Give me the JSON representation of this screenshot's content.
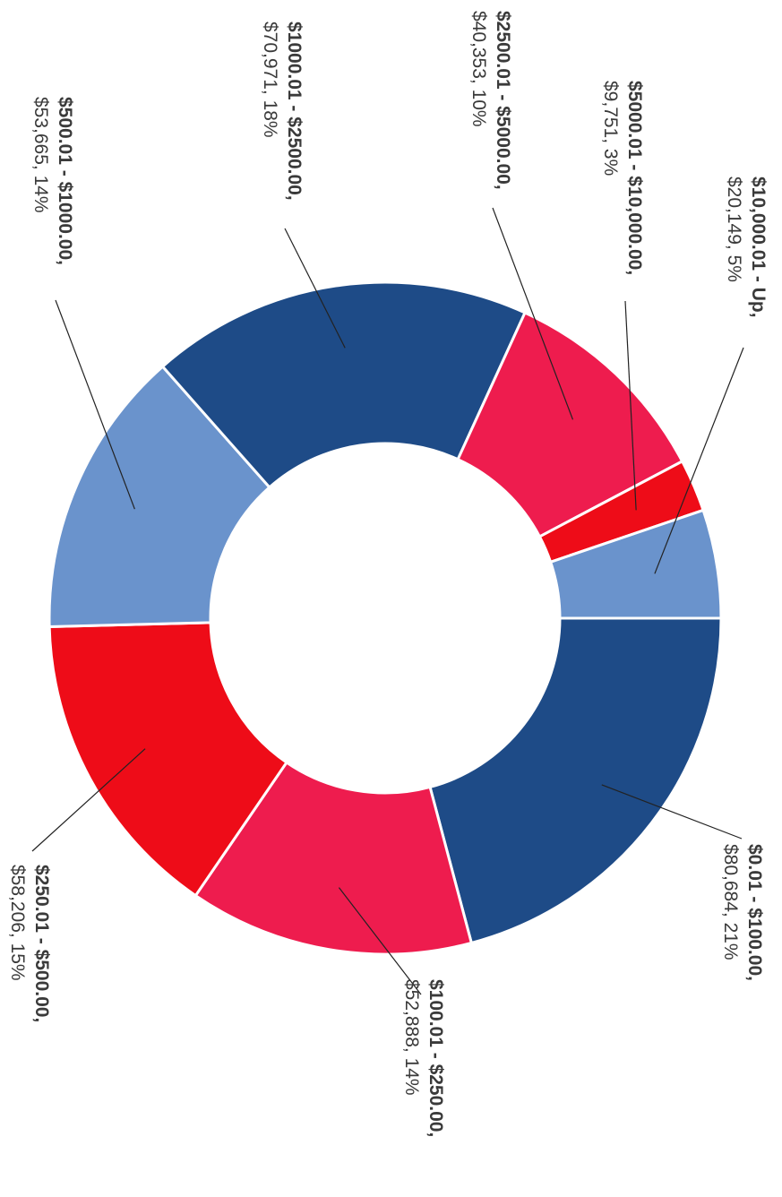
{
  "chart_data": {
    "type": "pie",
    "variant": "donut",
    "orientation": "rotated 90 degrees clockwise",
    "title": "",
    "slices": [
      {
        "label": "$0.01 - $100.00,",
        "value": 80684,
        "value_text": "$80,684, 21%",
        "percent": 21,
        "color": "#1e4b87"
      },
      {
        "label": "$100.01 - $250.00,",
        "value": 52888,
        "value_text": "$52,888, 14%",
        "percent": 14,
        "color": "#ee1c4e"
      },
      {
        "label": "$250.01 - $500.00,",
        "value": 58206,
        "value_text": "$58,206, 15%",
        "percent": 15,
        "color": "#ee0c18"
      },
      {
        "label": "$500.01 - $1000.00,",
        "value": 53665,
        "value_text": "$53,665, 14%",
        "percent": 14,
        "color": "#6a93cc"
      },
      {
        "label": "$1000.01 - $2500.00,",
        "value": 70971,
        "value_text": "$70,971, 18%",
        "percent": 18,
        "color": "#1e4b87"
      },
      {
        "label": "$2500.01 - $5000.00,",
        "value": 40353,
        "value_text": "$40,353, 10%",
        "percent": 10,
        "color": "#ee1c4e"
      },
      {
        "label": "$5000.01 - $10,000.00,",
        "value": 9751,
        "value_text": "$9,751, 3%",
        "percent": 3,
        "color": "#ee0c18"
      },
      {
        "label": "$10,000.01 - Up,",
        "value": 20149,
        "value_text": "$20,149, 5%",
        "percent": 5,
        "color": "#6a93cc"
      }
    ]
  }
}
